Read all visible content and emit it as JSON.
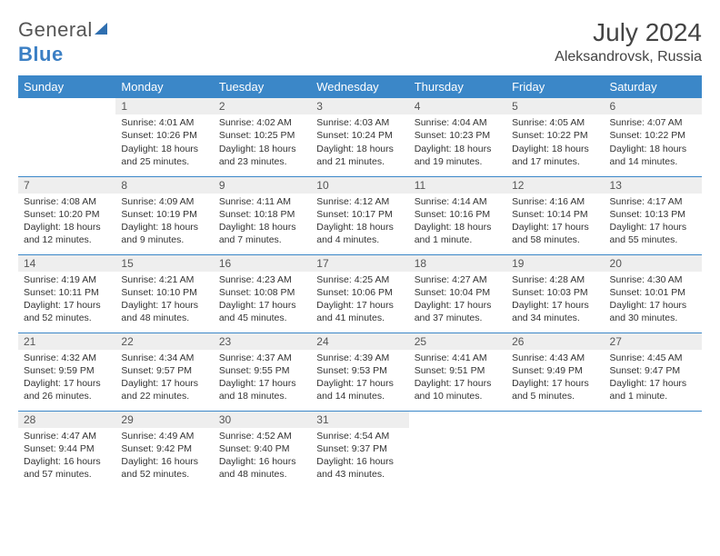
{
  "brand": {
    "name_part1": "General",
    "name_part2": "Blue",
    "icon_color": "#2f6fb0"
  },
  "header": {
    "month_title": "July 2024",
    "location": "Aleksandrovsk, Russia"
  },
  "colors": {
    "header_bg": "#3b87c8",
    "header_text": "#ffffff",
    "daynum_bg": "#eeeeee",
    "text": "#333333",
    "rule": "#3b87c8"
  },
  "typography": {
    "title_size_pt": 21,
    "location_size_pt": 12,
    "dayheader_size_pt": 10,
    "body_size_pt": 8
  },
  "weekdays": [
    "Sunday",
    "Monday",
    "Tuesday",
    "Wednesday",
    "Thursday",
    "Friday",
    "Saturday"
  ],
  "grid": {
    "start_offset": 1,
    "days": [
      {
        "n": 1,
        "sunrise": "4:01 AM",
        "sunset": "10:26 PM",
        "daylight": "18 hours and 25 minutes."
      },
      {
        "n": 2,
        "sunrise": "4:02 AM",
        "sunset": "10:25 PM",
        "daylight": "18 hours and 23 minutes."
      },
      {
        "n": 3,
        "sunrise": "4:03 AM",
        "sunset": "10:24 PM",
        "daylight": "18 hours and 21 minutes."
      },
      {
        "n": 4,
        "sunrise": "4:04 AM",
        "sunset": "10:23 PM",
        "daylight": "18 hours and 19 minutes."
      },
      {
        "n": 5,
        "sunrise": "4:05 AM",
        "sunset": "10:22 PM",
        "daylight": "18 hours and 17 minutes."
      },
      {
        "n": 6,
        "sunrise": "4:07 AM",
        "sunset": "10:22 PM",
        "daylight": "18 hours and 14 minutes."
      },
      {
        "n": 7,
        "sunrise": "4:08 AM",
        "sunset": "10:20 PM",
        "daylight": "18 hours and 12 minutes."
      },
      {
        "n": 8,
        "sunrise": "4:09 AM",
        "sunset": "10:19 PM",
        "daylight": "18 hours and 9 minutes."
      },
      {
        "n": 9,
        "sunrise": "4:11 AM",
        "sunset": "10:18 PM",
        "daylight": "18 hours and 7 minutes."
      },
      {
        "n": 10,
        "sunrise": "4:12 AM",
        "sunset": "10:17 PM",
        "daylight": "18 hours and 4 minutes."
      },
      {
        "n": 11,
        "sunrise": "4:14 AM",
        "sunset": "10:16 PM",
        "daylight": "18 hours and 1 minute."
      },
      {
        "n": 12,
        "sunrise": "4:16 AM",
        "sunset": "10:14 PM",
        "daylight": "17 hours and 58 minutes."
      },
      {
        "n": 13,
        "sunrise": "4:17 AM",
        "sunset": "10:13 PM",
        "daylight": "17 hours and 55 minutes."
      },
      {
        "n": 14,
        "sunrise": "4:19 AM",
        "sunset": "10:11 PM",
        "daylight": "17 hours and 52 minutes."
      },
      {
        "n": 15,
        "sunrise": "4:21 AM",
        "sunset": "10:10 PM",
        "daylight": "17 hours and 48 minutes."
      },
      {
        "n": 16,
        "sunrise": "4:23 AM",
        "sunset": "10:08 PM",
        "daylight": "17 hours and 45 minutes."
      },
      {
        "n": 17,
        "sunrise": "4:25 AM",
        "sunset": "10:06 PM",
        "daylight": "17 hours and 41 minutes."
      },
      {
        "n": 18,
        "sunrise": "4:27 AM",
        "sunset": "10:04 PM",
        "daylight": "17 hours and 37 minutes."
      },
      {
        "n": 19,
        "sunrise": "4:28 AM",
        "sunset": "10:03 PM",
        "daylight": "17 hours and 34 minutes."
      },
      {
        "n": 20,
        "sunrise": "4:30 AM",
        "sunset": "10:01 PM",
        "daylight": "17 hours and 30 minutes."
      },
      {
        "n": 21,
        "sunrise": "4:32 AM",
        "sunset": "9:59 PM",
        "daylight": "17 hours and 26 minutes."
      },
      {
        "n": 22,
        "sunrise": "4:34 AM",
        "sunset": "9:57 PM",
        "daylight": "17 hours and 22 minutes."
      },
      {
        "n": 23,
        "sunrise": "4:37 AM",
        "sunset": "9:55 PM",
        "daylight": "17 hours and 18 minutes."
      },
      {
        "n": 24,
        "sunrise": "4:39 AM",
        "sunset": "9:53 PM",
        "daylight": "17 hours and 14 minutes."
      },
      {
        "n": 25,
        "sunrise": "4:41 AM",
        "sunset": "9:51 PM",
        "daylight": "17 hours and 10 minutes."
      },
      {
        "n": 26,
        "sunrise": "4:43 AM",
        "sunset": "9:49 PM",
        "daylight": "17 hours and 5 minutes."
      },
      {
        "n": 27,
        "sunrise": "4:45 AM",
        "sunset": "9:47 PM",
        "daylight": "17 hours and 1 minute."
      },
      {
        "n": 28,
        "sunrise": "4:47 AM",
        "sunset": "9:44 PM",
        "daylight": "16 hours and 57 minutes."
      },
      {
        "n": 29,
        "sunrise": "4:49 AM",
        "sunset": "9:42 PM",
        "daylight": "16 hours and 52 minutes."
      },
      {
        "n": 30,
        "sunrise": "4:52 AM",
        "sunset": "9:40 PM",
        "daylight": "16 hours and 48 minutes."
      },
      {
        "n": 31,
        "sunrise": "4:54 AM",
        "sunset": "9:37 PM",
        "daylight": "16 hours and 43 minutes."
      }
    ]
  },
  "labels": {
    "sunrise_prefix": "Sunrise: ",
    "sunset_prefix": "Sunset: ",
    "daylight_prefix": "Daylight: "
  }
}
